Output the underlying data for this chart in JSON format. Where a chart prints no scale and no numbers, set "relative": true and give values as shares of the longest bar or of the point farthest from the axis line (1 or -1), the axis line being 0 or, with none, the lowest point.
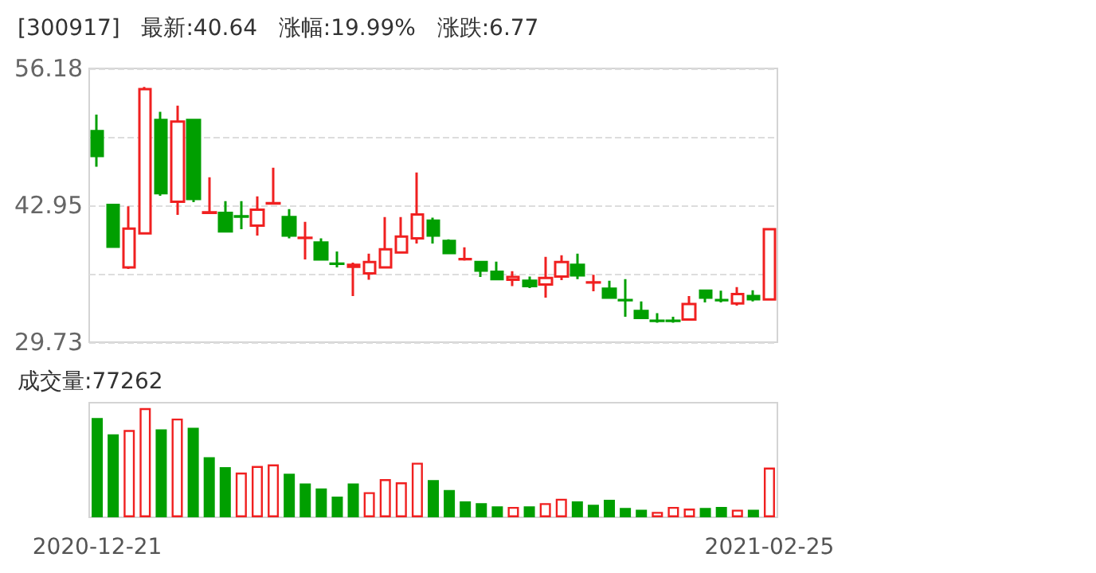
{
  "chart_data": [
    {
      "type": "candlestick",
      "title": "[300917]   最新:40.64   涨幅:19.99%   涨跌:6.77",
      "categories": [
        "2020-12-21",
        null,
        null,
        null,
        null,
        null,
        null,
        null,
        null,
        null,
        null,
        null,
        null,
        null,
        null,
        null,
        null,
        null,
        null,
        null,
        null,
        null,
        null,
        null,
        null,
        null,
        null,
        null,
        null,
        null,
        null,
        null,
        null,
        null,
        null,
        null,
        null,
        null,
        null,
        null,
        null,
        null,
        "2021-02-25"
      ],
      "ohlc": [
        [
          50.13,
          51.72,
          46.69,
          47.72
        ],
        [
          43.0,
          43.1,
          38.95,
          38.95
        ],
        [
          36.95,
          42.85,
          36.8,
          40.7
        ],
        [
          40.24,
          54.39,
          40.24,
          54.18
        ],
        [
          51.21,
          51.98,
          43.88,
          44.13
        ],
        [
          43.31,
          52.59,
          42.03,
          51.05
        ],
        [
          51.21,
          51.21,
          43.26,
          43.57
        ],
        [
          42.23,
          45.67,
          42.23,
          42.28
        ],
        [
          42.23,
          43.36,
          40.39,
          40.44
        ],
        [
          41.9,
          43.36,
          40.65,
          41.85
        ],
        [
          41.0,
          43.82,
          40.03,
          42.54
        ],
        [
          43.12,
          46.59,
          43.12,
          43.16
        ],
        [
          41.82,
          42.59,
          39.77,
          40.03
        ],
        [
          39.8,
          41.36,
          37.72,
          39.82
        ],
        [
          39.36,
          39.77,
          37.62,
          37.72
        ],
        [
          37.33,
          38.49,
          36.95,
          37.31
        ],
        [
          37.01,
          37.42,
          34.18,
          37.21
        ],
        [
          36.39,
          38.29,
          35.77,
          37.47
        ],
        [
          36.95,
          41.82,
          36.85,
          38.7
        ],
        [
          38.39,
          41.82,
          38.39,
          39.93
        ],
        [
          39.77,
          46.13,
          39.26,
          42.08
        ],
        [
          41.47,
          41.77,
          39.26,
          40.03
        ],
        [
          39.52,
          39.67,
          38.24,
          38.34
        ],
        [
          37.75,
          38.9,
          37.62,
          37.77
        ],
        [
          37.47,
          37.47,
          36.03,
          36.65
        ],
        [
          36.54,
          37.52,
          35.72,
          35.83
        ],
        [
          35.77,
          36.59,
          35.16,
          36.03
        ],
        [
          35.67,
          36.08,
          34.95,
          35.16
        ],
        [
          35.31,
          37.98,
          34.03,
          35.93
        ],
        [
          36.08,
          38.13,
          35.72,
          37.47
        ],
        [
          37.21,
          38.29,
          35.83,
          36.18
        ],
        [
          35.5,
          36.24,
          34.65,
          35.52
        ],
        [
          34.9,
          35.67,
          34.03,
          34.03
        ],
        [
          33.8,
          35.83,
          32.19,
          33.78
        ],
        [
          32.75,
          33.67,
          32.08,
          32.08
        ],
        [
          31.8,
          32.54,
          31.62,
          31.78
        ],
        [
          31.8,
          32.19,
          31.62,
          31.78
        ],
        [
          31.93,
          34.18,
          31.93,
          33.42
        ],
        [
          34.7,
          34.7,
          33.57,
          34.03
        ],
        [
          33.8,
          34.7,
          33.57,
          33.78
        ],
        [
          33.47,
          35.06,
          33.26,
          34.39
        ],
        [
          34.18,
          34.75,
          33.67,
          33.88
        ],
        [
          33.87,
          40.64,
          33.87,
          40.64
        ]
      ],
      "colors": [
        "#009f00",
        "#009f00",
        "#f02020",
        "#f02020",
        "#009f00",
        "#f02020",
        "#009f00",
        "#f02020",
        "#009f00",
        "#009f00",
        "#f02020",
        "#f02020",
        "#009f00",
        "#f02020",
        "#009f00",
        "#009f00",
        "#f02020",
        "#f02020",
        "#f02020",
        "#f02020",
        "#f02020",
        "#009f00",
        "#009f00",
        "#f02020",
        "#009f00",
        "#009f00",
        "#f02020",
        "#009f00",
        "#f02020",
        "#f02020",
        "#009f00",
        "#f02020",
        "#009f00",
        "#009f00",
        "#009f00",
        "#009f00",
        "#009f00",
        "#f02020",
        "#009f00",
        "#009f00",
        "#f02020",
        "#009f00",
        "#f02020"
      ],
      "ylim": [
        29.73,
        56.18
      ],
      "yticks": [
        29.73,
        {
          "value": 36.34,
          "label": null
        },
        42.95,
        {
          "value": 49.565,
          "label": null
        },
        56.18
      ],
      "grid": "y",
      "tick_labels": "y"
    },
    {
      "type": "bar",
      "title": "成交量:77262",
      "relative": true,
      "categories": [
        "2020-12-21",
        null,
        null,
        null,
        null,
        null,
        null,
        null,
        null,
        null,
        null,
        null,
        null,
        null,
        null,
        null,
        null,
        null,
        null,
        null,
        null,
        null,
        null,
        null,
        null,
        null,
        null,
        null,
        null,
        null,
        null,
        null,
        null,
        null,
        null,
        null,
        null,
        null,
        null,
        null,
        null,
        null,
        "2021-02-25"
      ],
      "values": [
        0.91,
        0.76,
        0.8,
        1,
        0.805,
        0.905,
        0.82,
        0.55,
        0.46,
        0.41,
        0.47,
        0.485,
        0.4,
        0.31,
        0.265,
        0.19,
        0.31,
        0.23,
        0.35,
        0.32,
        0.5,
        0.34,
        0.25,
        0.145,
        0.13,
        0.1,
        0.095,
        0.1,
        0.13,
        0.17,
        0.145,
        0.115,
        0.16,
        0.085,
        0.07,
        0.05,
        0.095,
        0.08,
        0.085,
        0.095,
        0.07,
        0.07,
        0.455
      ],
      "colors": [
        "#009f00",
        "#009f00",
        "#f02020",
        "#f02020",
        "#009f00",
        "#f02020",
        "#009f00",
        "#009f00",
        "#009f00",
        "#f02020",
        "#f02020",
        "#f02020",
        "#009f00",
        "#009f00",
        "#009f00",
        "#009f00",
        "#009f00",
        "#f02020",
        "#f02020",
        "#f02020",
        "#f02020",
        "#009f00",
        "#009f00",
        "#009f00",
        "#009f00",
        "#009f00",
        "#f02020",
        "#009f00",
        "#f02020",
        "#f02020",
        "#009f00",
        "#009f00",
        "#009f00",
        "#009f00",
        "#009f00",
        "#f02020",
        "#f02020",
        "#f02020",
        "#009f00",
        "#009f00",
        "#f02020",
        "#009f00",
        "#f02020"
      ],
      "tick_labels": "x"
    }
  ]
}
